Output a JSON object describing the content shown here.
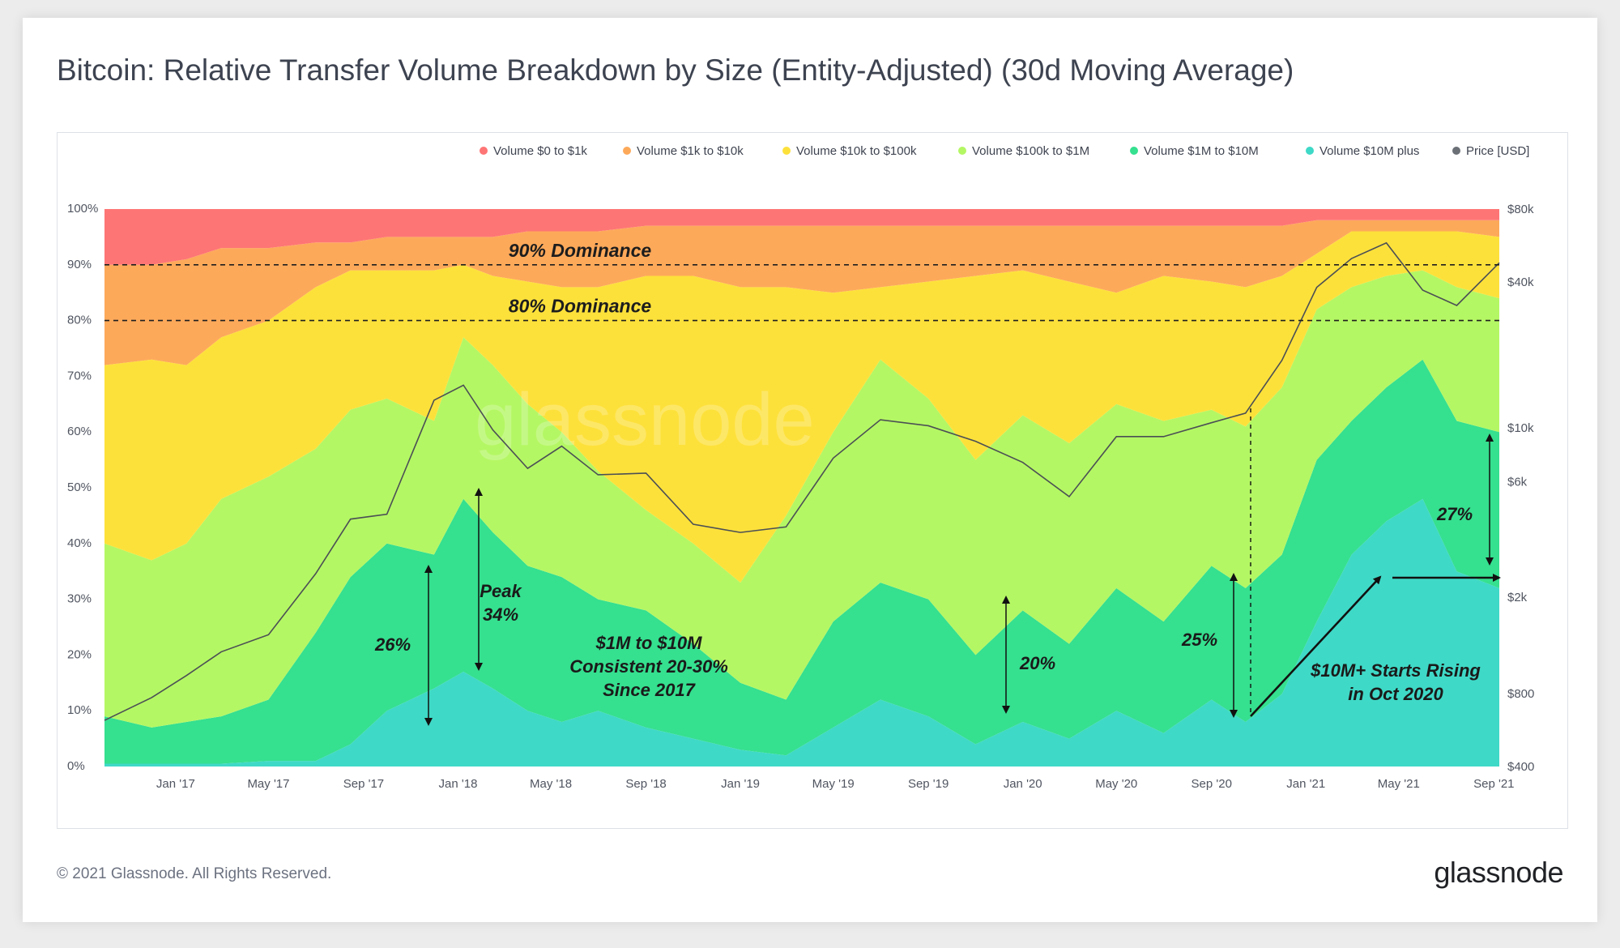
{
  "title": "Bitcoin: Relative Transfer Volume Breakdown by Size (Entity-Adjusted) (30d Moving Average)",
  "footer": {
    "copyright": "© 2021 Glassnode. All Rights Reserved.",
    "logo": "glassnode",
    "watermark": "glassnode"
  },
  "chart_data": {
    "type": "area",
    "stacked": true,
    "normalized_percent": true,
    "grid": false,
    "legend_position": "top-right",
    "x_labels": [
      "Jan '17",
      "May '17",
      "Sep '17",
      "Jan '18",
      "May '18",
      "Sep '18",
      "Jan '19",
      "May '19",
      "Sep '19",
      "Jan '20",
      "May '20",
      "Sep '20",
      "Jan '21",
      "May '21",
      "Sep '21"
    ],
    "x_start": "2016-10-01",
    "x_end": "2021-09-08",
    "y_left": {
      "ticks": [
        "0%",
        "10%",
        "20%",
        "30%",
        "40%",
        "50%",
        "60%",
        "70%",
        "80%",
        "90%",
        "100%"
      ],
      "range": [
        0,
        100
      ]
    },
    "y_right": {
      "ticks": [
        "$400",
        "$800",
        "$2k",
        "$6k",
        "$10k",
        "$40k",
        "$80k"
      ],
      "values": [
        400,
        800,
        2000,
        6000,
        10000,
        40000,
        80000
      ],
      "scale": "log"
    },
    "dates": [
      "2016-10-01",
      "2016-12-01",
      "2017-01-15",
      "2017-03-01",
      "2017-05-01",
      "2017-07-01",
      "2017-08-15",
      "2017-10-01",
      "2017-12-01",
      "2018-01-08",
      "2018-02-15",
      "2018-04-01",
      "2018-05-15",
      "2018-07-01",
      "2018-09-01",
      "2018-11-01",
      "2019-01-01",
      "2019-03-01",
      "2019-05-01",
      "2019-07-01",
      "2019-09-01",
      "2019-11-01",
      "2020-01-01",
      "2020-03-01",
      "2020-05-01",
      "2020-07-01",
      "2020-09-01",
      "2020-10-15",
      "2020-12-01",
      "2021-01-15",
      "2021-03-01",
      "2021-04-15",
      "2021-06-01",
      "2021-07-15",
      "2021-09-08"
    ],
    "series": [
      {
        "name": "Volume $10M plus",
        "color": "#3fd9c7",
        "cumulative": [
          0.5,
          0.5,
          0.5,
          0.5,
          1,
          1,
          4,
          10,
          14,
          17,
          14,
          10,
          8,
          10,
          7,
          5,
          3,
          2,
          7,
          12,
          9,
          4,
          8,
          5,
          10,
          6,
          12,
          8,
          13,
          26,
          38,
          44,
          48,
          35,
          32
        ]
      },
      {
        "name": "Volume $1M to $10M",
        "color": "#35e08f",
        "cumulative": [
          9,
          7,
          8,
          9,
          12,
          24,
          34,
          40,
          38,
          48,
          42,
          36,
          34,
          30,
          28,
          22,
          15,
          12,
          26,
          33,
          30,
          20,
          28,
          22,
          32,
          26,
          36,
          32,
          38,
          55,
          62,
          68,
          73,
          62,
          60
        ]
      },
      {
        "name": "Volume $100k to $1M",
        "color": "#b4f764",
        "cumulative": [
          40,
          37,
          40,
          48,
          52,
          57,
          64,
          66,
          62,
          77,
          72,
          65,
          60,
          53,
          46,
          40,
          33,
          45,
          60,
          73,
          66,
          55,
          63,
          58,
          65,
          62,
          64,
          61,
          68,
          82,
          86,
          88,
          89,
          86,
          84
        ]
      },
      {
        "name": "Volume $10k to $100k",
        "color": "#fde13b",
        "cumulative": [
          72,
          73,
          72,
          77,
          80,
          86,
          89,
          89,
          89,
          90,
          88,
          87,
          86,
          86,
          88,
          88,
          86,
          86,
          85,
          86,
          87,
          88,
          89,
          87,
          85,
          88,
          87,
          86,
          88,
          92,
          96,
          96,
          96,
          96,
          95
        ]
      },
      {
        "name": "Volume $1k to $10k",
        "color": "#fda95a",
        "cumulative": [
          90,
          90,
          91,
          93,
          93,
          94,
          94,
          95,
          95,
          95,
          95,
          96,
          96,
          96,
          97,
          97,
          97,
          97,
          97,
          97,
          97,
          97,
          97,
          97,
          97,
          97,
          97,
          97,
          97,
          98,
          98,
          98,
          98,
          98,
          98
        ]
      },
      {
        "name": "Volume $0 to $1k",
        "color": "#fe7575",
        "cumulative": [
          100,
          100,
          100,
          100,
          100,
          100,
          100,
          100,
          100,
          100,
          100,
          100,
          100,
          100,
          100,
          100,
          100,
          100,
          100,
          100,
          100,
          100,
          100,
          100,
          100,
          100,
          100,
          100,
          100,
          100,
          100,
          100,
          100,
          100,
          100
        ]
      }
    ],
    "price": {
      "name": "Price [USD]",
      "color": "#6b7077",
      "values": [
        620,
        770,
        950,
        1190,
        1400,
        2500,
        4200,
        4400,
        13000,
        15000,
        9800,
        6800,
        8400,
        6400,
        6500,
        4000,
        3700,
        3900,
        7500,
        10800,
        10200,
        8800,
        7200,
        5200,
        9200,
        9200,
        10500,
        11500,
        19000,
        38000,
        50000,
        58000,
        37000,
        32000,
        48000
      ]
    },
    "reference_lines": [
      {
        "value": 90,
        "label": "90% Dominance"
      },
      {
        "value": 80,
        "label": "80% Dominance"
      }
    ],
    "annotations": [
      {
        "label": "26%"
      },
      {
        "label": "Peak\n34%"
      },
      {
        "label": "$1M to $10M\nConsistent 20-30%\nSince 2017"
      },
      {
        "label": "20%"
      },
      {
        "label": "25%"
      },
      {
        "label": "$10M+ Starts Rising\nin Oct 2020"
      },
      {
        "label": "27%"
      }
    ]
  }
}
